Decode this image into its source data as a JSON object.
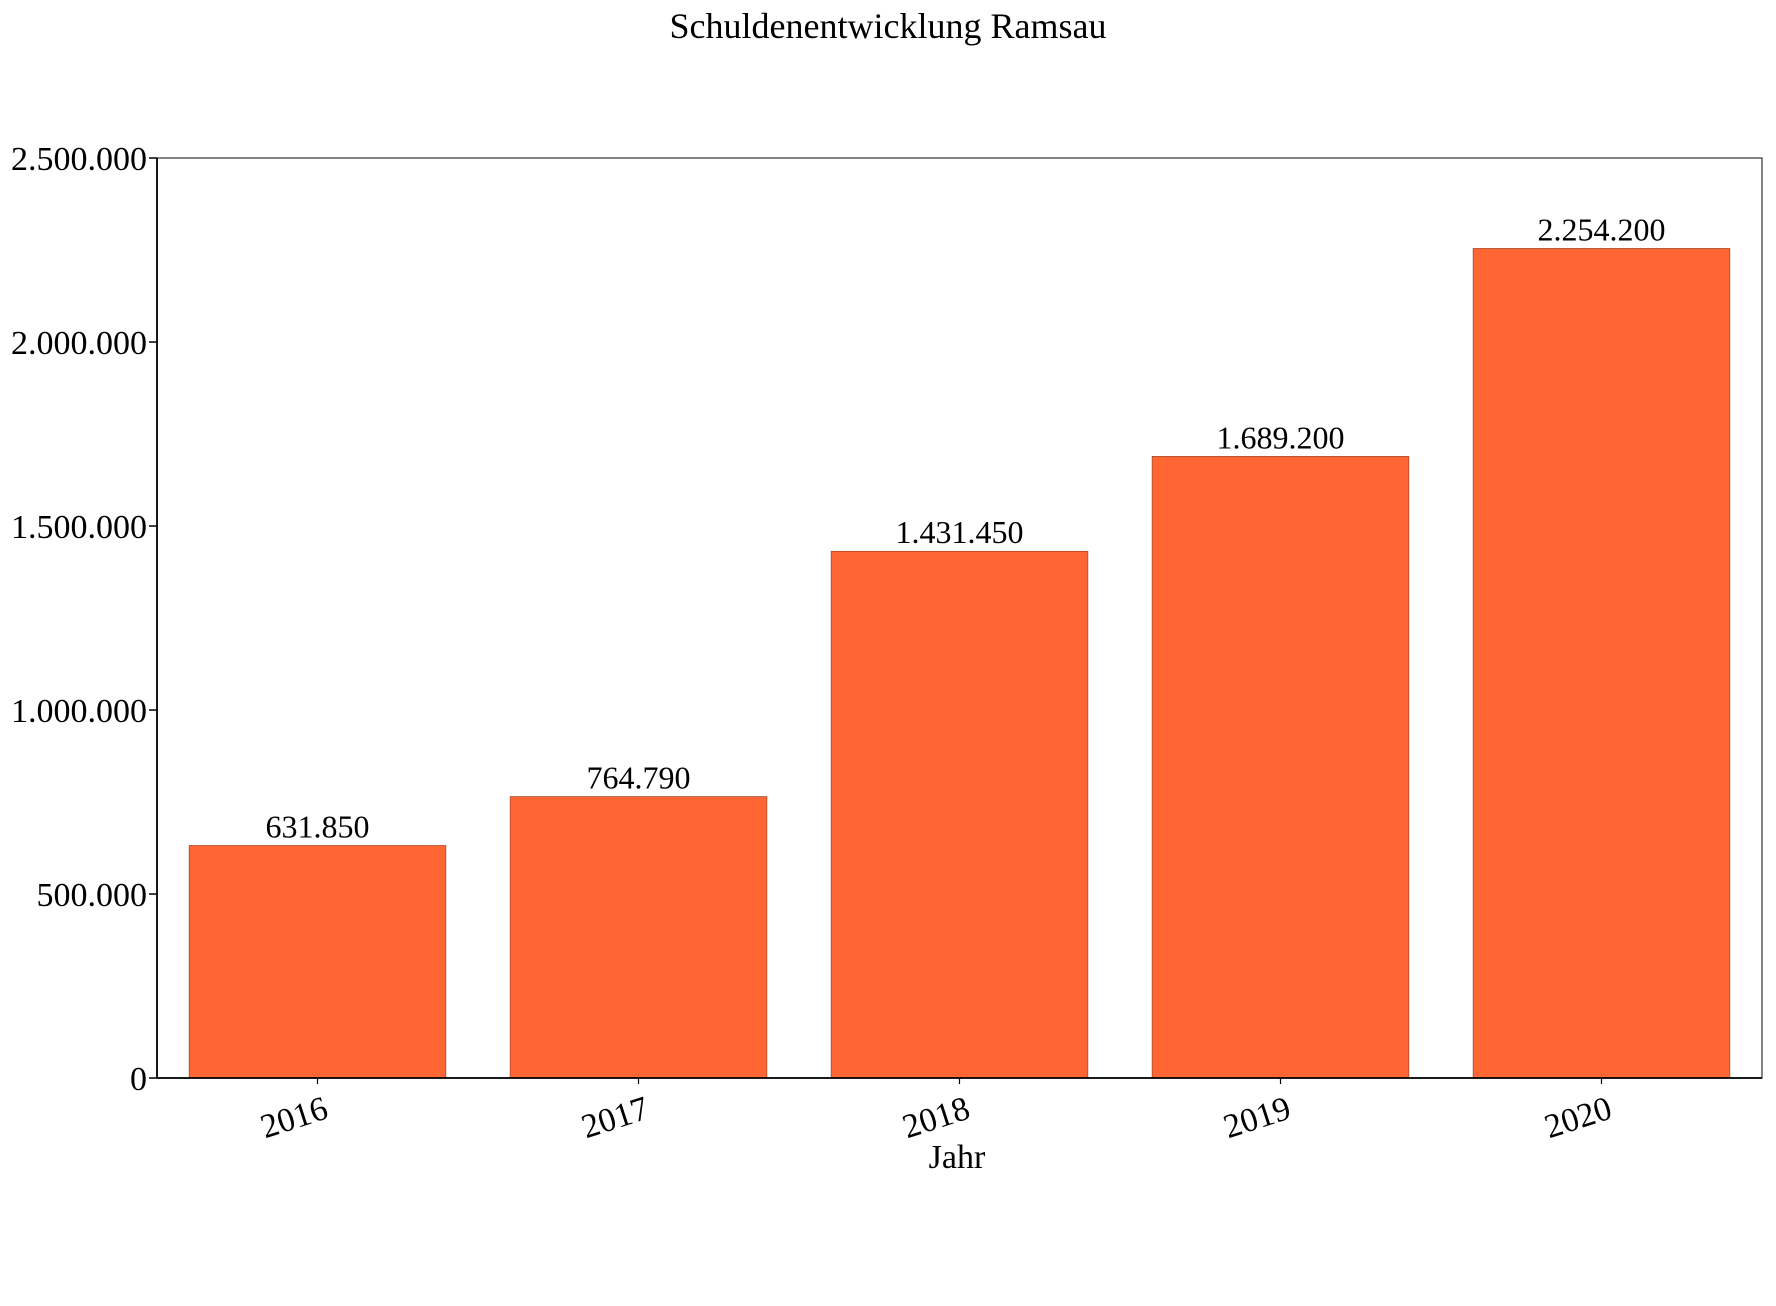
{
  "chart_data": {
    "type": "bar",
    "title": "Schuldenentwicklung Ramsau",
    "xlabel": "Jahr",
    "ylabel": "",
    "categories": [
      "2016",
      "2017",
      "2018",
      "2019",
      "2020"
    ],
    "values": [
      631850,
      764790,
      1431450,
      1689200,
      2254200
    ],
    "data_labels": [
      "631.850",
      "764.790",
      "1.431.450",
      "1.689.200",
      "2.254.200"
    ],
    "ylim": [
      0,
      2500000
    ],
    "yticks": [
      0,
      500000,
      1000000,
      1500000,
      2000000,
      2500000
    ],
    "ytick_labels": [
      "0",
      "500.000",
      "1.000.000",
      "1.500.000",
      "2.000.000",
      "2.500.000"
    ],
    "grid": false,
    "legend": "none",
    "colors": {
      "bar": "#ff6633",
      "bar_edge": "#8a3a1a",
      "axis": "#000000"
    }
  }
}
